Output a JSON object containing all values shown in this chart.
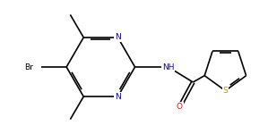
{
  "background": "#ffffff",
  "bond_color": "#000000",
  "atom_colors": {
    "N": "#0000cd",
    "O": "#ff0000",
    "S": "#cc8800",
    "Br": "#000000",
    "C": "#000000"
  },
  "figsize": [
    2.99,
    1.5
  ],
  "dpi": 100
}
